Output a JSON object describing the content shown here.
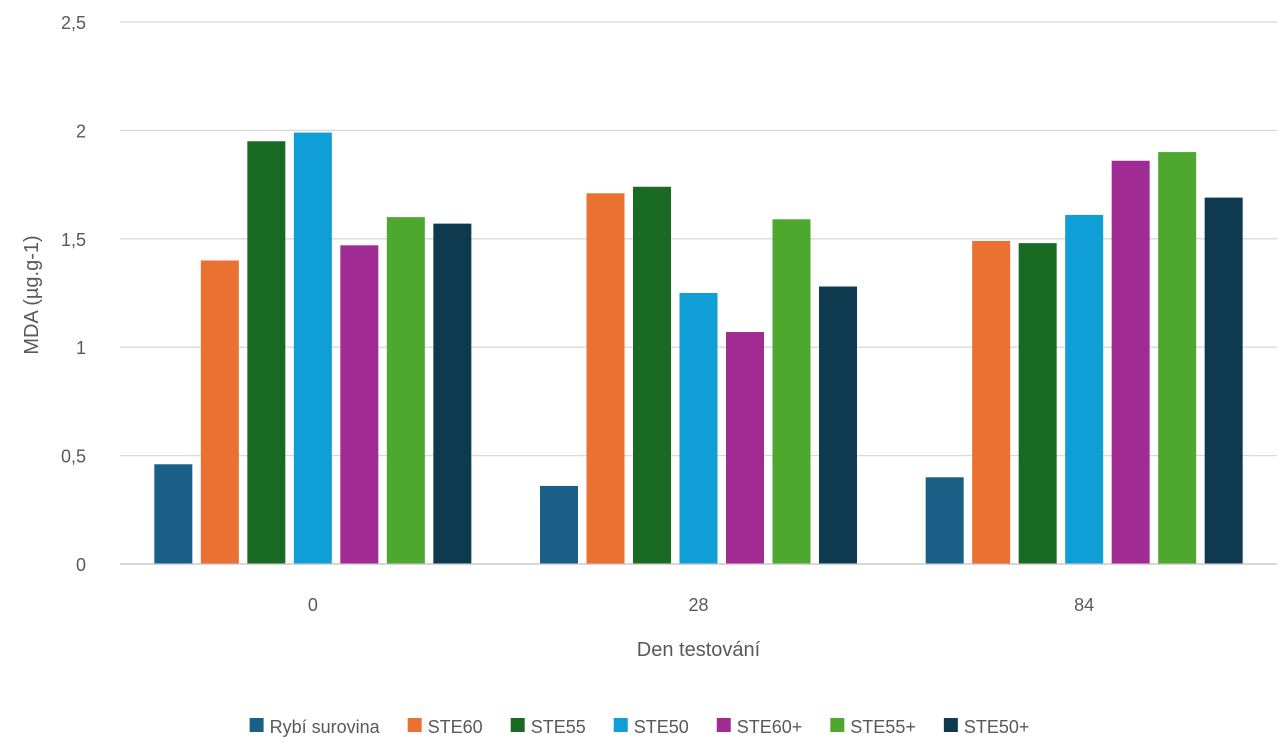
{
  "chart_data": {
    "type": "bar",
    "title": "",
    "xlabel": "Den testování",
    "ylabel": "MDA (µg.g-1)",
    "categories": [
      "0",
      "28",
      "84"
    ],
    "y_ticks": [
      "0",
      "0,5",
      "1",
      "1,5",
      "2",
      "2,5"
    ],
    "ylim": [
      0,
      2.5
    ],
    "grid": true,
    "legend_position": "bottom",
    "series": [
      {
        "name": "Rybí surovina",
        "color": "#1a5f86",
        "values": [
          0.46,
          0.36,
          0.4
        ]
      },
      {
        "name": "STE60",
        "color": "#e97132",
        "values": [
          1.4,
          1.71,
          1.49
        ]
      },
      {
        "name": "STE55",
        "color": "#196b24",
        "values": [
          1.95,
          1.74,
          1.48
        ]
      },
      {
        "name": "STE50",
        "color": "#0f9ed5",
        "values": [
          1.99,
          1.25,
          1.61
        ]
      },
      {
        "name": "STE60+",
        "color": "#a02b93",
        "values": [
          1.47,
          1.07,
          1.86
        ]
      },
      {
        "name": "STE55+",
        "color": "#4ea72e",
        "values": [
          1.6,
          1.59,
          1.9
        ]
      },
      {
        "name": "STE50+",
        "color": "#0e3a50",
        "values": [
          1.57,
          1.28,
          1.69
        ]
      }
    ]
  }
}
